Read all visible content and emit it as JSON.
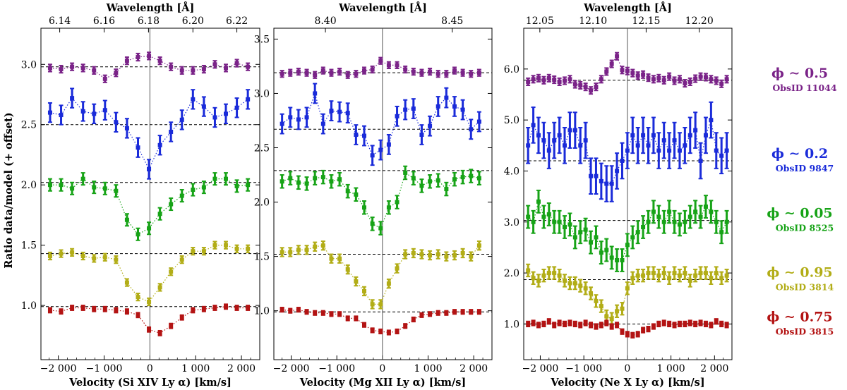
{
  "figure": {
    "ylabel": "Ratio data/model  (+ offset)",
    "top_axis_label": "Wavelength [Å]"
  },
  "colors": {
    "purple": "#7a2388",
    "blue": "#1a2bd9",
    "green": "#17a317",
    "olive": "#b2ad17",
    "red": "#b31313"
  },
  "legend": [
    {
      "phase": "ϕ ∼ 0.5",
      "obsid": "ObsID 11044",
      "color": "#7a2388"
    },
    {
      "phase": "ϕ ∼ 0.2",
      "obsid": "ObsID 9847",
      "color": "#1a2bd9"
    },
    {
      "phase": "ϕ ∼ 0.05",
      "obsid": "ObsID 8525",
      "color": "#17a317"
    },
    {
      "phase": "ϕ ∼ 0.95",
      "obsid": "ObsID 3814",
      "color": "#b2ad17"
    },
    {
      "phase": "ϕ ∼ 0.75",
      "obsid": "ObsID 3815",
      "color": "#b31313"
    }
  ],
  "chart_data": [
    {
      "type": "scatter",
      "xlabel": "Velocity (Si XIV Ly α) [km/s]",
      "xlim": [
        -2380,
        2400
      ],
      "ylim": [
        0.55,
        3.3
      ],
      "xticks": [
        -2000,
        -1000,
        0,
        1000,
        2000
      ],
      "xtick_labels": [
        "−2 000",
        "−1 000",
        "0",
        "1 000",
        "2 000"
      ],
      "yticks": [
        1.0,
        1.5,
        2.0,
        2.5,
        3.0
      ],
      "ytick_labels": [
        "1.0",
        "1.5",
        "2.0",
        "2.5",
        "3.0"
      ],
      "top_ticks": [
        -1970,
        -1000,
        -30,
        940,
        1900
      ],
      "top_tick_labels": [
        "6.14",
        "6.16",
        "6.18",
        "6.20",
        "6.22"
      ],
      "x": [
        -2180,
        -1940,
        -1700,
        -1460,
        -1220,
        -980,
        -740,
        -500,
        -260,
        -20,
        220,
        460,
        700,
        940,
        1180,
        1420,
        1660,
        1900,
        2140
      ],
      "series": [
        {
          "color": "purple",
          "baseline": 2.98,
          "errbar": 0.03,
          "values": [
            2.97,
            2.96,
            2.98,
            2.97,
            2.95,
            2.88,
            2.93,
            3.03,
            3.06,
            3.07,
            3.03,
            2.98,
            2.95,
            2.95,
            2.96,
            3.0,
            2.97,
            3.01,
            2.98
          ]
        },
        {
          "color": "blue",
          "baseline": 2.5,
          "errbar": 0.08,
          "values": [
            2.6,
            2.58,
            2.72,
            2.61,
            2.59,
            2.62,
            2.52,
            2.47,
            2.31,
            2.13,
            2.33,
            2.44,
            2.54,
            2.71,
            2.65,
            2.56,
            2.59,
            2.64,
            2.71
          ]
        },
        {
          "color": "green",
          "baseline": 2.02,
          "errbar": 0.05,
          "values": [
            2.0,
            2.0,
            1.97,
            2.05,
            1.98,
            1.97,
            1.95,
            1.71,
            1.59,
            1.64,
            1.76,
            1.84,
            1.91,
            1.96,
            1.98,
            2.05,
            2.05,
            1.99,
            2.0
          ]
        },
        {
          "color": "olive",
          "baseline": 1.43,
          "errbar": 0.03,
          "values": [
            1.41,
            1.43,
            1.44,
            1.41,
            1.39,
            1.4,
            1.38,
            1.19,
            1.07,
            1.03,
            1.15,
            1.28,
            1.38,
            1.45,
            1.45,
            1.5,
            1.5,
            1.47,
            1.47
          ]
        },
        {
          "color": "red",
          "baseline": 0.99,
          "errbar": 0.02,
          "values": [
            0.96,
            0.95,
            0.98,
            0.98,
            0.97,
            0.97,
            0.96,
            0.95,
            0.92,
            0.8,
            0.77,
            0.83,
            0.9,
            0.96,
            0.97,
            0.98,
            0.99,
            0.98,
            0.98
          ]
        }
      ]
    },
    {
      "type": "scatter",
      "xlabel": "Velocity (Mg XII Ly α) [km/s]",
      "xlim": [
        -2380,
        2400
      ],
      "ylim": [
        0.55,
        3.6
      ],
      "xticks": [
        -2000,
        -1000,
        0,
        1000,
        2000
      ],
      "xtick_labels": [
        "−2 000",
        "−1 000",
        "0",
        "1 000",
        "2 000"
      ],
      "yticks": [
        1.0,
        1.5,
        2.0,
        2.5,
        3.0,
        3.5
      ],
      "ytick_labels": [
        "1.0",
        "1.5",
        "2.0",
        "2.5",
        "3.0",
        "3.5"
      ],
      "top_ticks": [
        -1250,
        1530
      ],
      "top_tick_labels": [
        "8.40",
        "8.45"
      ],
      "x": [
        -2200,
        -2020,
        -1840,
        -1660,
        -1480,
        -1300,
        -1120,
        -940,
        -760,
        -580,
        -400,
        -220,
        -40,
        140,
        320,
        500,
        680,
        860,
        1040,
        1220,
        1400,
        1580,
        1760,
        1940,
        2120
      ],
      "series": [
        {
          "color": "purple",
          "baseline": 3.19,
          "errbar": 0.03,
          "values": [
            3.18,
            3.19,
            3.2,
            3.19,
            3.17,
            3.21,
            3.19,
            3.2,
            3.17,
            3.18,
            3.21,
            3.22,
            3.3,
            3.26,
            3.26,
            3.22,
            3.2,
            3.19,
            3.2,
            3.18,
            3.18,
            3.21,
            3.19,
            3.18,
            3.19
          ]
        },
        {
          "color": "blue",
          "baseline": 2.67,
          "errbar": 0.09,
          "values": [
            2.72,
            2.78,
            2.76,
            2.78,
            3.0,
            2.72,
            2.84,
            2.83,
            2.82,
            2.62,
            2.61,
            2.43,
            2.48,
            2.53,
            2.79,
            2.85,
            2.86,
            2.62,
            2.7,
            2.88,
            2.96,
            2.88,
            2.85,
            2.67,
            2.74
          ]
        },
        {
          "color": "green",
          "baseline": 2.29,
          "errbar": 0.06,
          "values": [
            2.19,
            2.22,
            2.18,
            2.17,
            2.22,
            2.23,
            2.19,
            2.21,
            2.1,
            2.07,
            1.95,
            1.8,
            1.76,
            1.95,
            2.0,
            2.27,
            2.22,
            2.15,
            2.19,
            2.2,
            2.12,
            2.21,
            2.23,
            2.24,
            2.22
          ]
        },
        {
          "color": "olive",
          "baseline": 1.52,
          "errbar": 0.04,
          "values": [
            1.54,
            1.54,
            1.56,
            1.56,
            1.59,
            1.6,
            1.48,
            1.48,
            1.38,
            1.27,
            1.18,
            1.06,
            1.06,
            1.25,
            1.39,
            1.52,
            1.53,
            1.52,
            1.51,
            1.52,
            1.5,
            1.51,
            1.53,
            1.5,
            1.6
          ]
        },
        {
          "color": "red",
          "baseline": 0.99,
          "errbar": 0.02,
          "values": [
            1.01,
            1.0,
            1.01,
            0.99,
            0.98,
            0.98,
            0.97,
            0.97,
            0.93,
            0.93,
            0.87,
            0.82,
            0.81,
            0.8,
            0.81,
            0.86,
            0.92,
            0.96,
            0.97,
            0.98,
            0.98,
            0.99,
            0.99,
            0.99,
            0.99
          ]
        }
      ]
    },
    {
      "type": "scatter",
      "xlabel": "Velocity (Ne X Ly α) [km/s]",
      "xlim": [
        -2380,
        2400
      ],
      "ylim": [
        0.3,
        6.8
      ],
      "xticks": [
        -2000,
        -1000,
        0,
        1000,
        2000
      ],
      "xtick_labels": [
        "−2 000",
        "−1 000",
        "0",
        "1 000",
        "2 000"
      ],
      "yticks": [
        1.0,
        2.0,
        3.0,
        4.0,
        5.0,
        6.0
      ],
      "ytick_labels": [
        "1.0",
        "2.0",
        "3.0",
        "4.0",
        "5.0",
        "6.0"
      ],
      "top_ticks": [
        -2010,
        -790,
        430,
        1650
      ],
      "top_tick_labels": [
        "12.05",
        "12.10",
        "12.15",
        "12.20"
      ],
      "x": [
        -2280,
        -2160,
        -2040,
        -1920,
        -1800,
        -1680,
        -1560,
        -1440,
        -1320,
        -1200,
        -1080,
        -960,
        -840,
        -720,
        -600,
        -480,
        -360,
        -240,
        -120,
        0,
        120,
        240,
        360,
        480,
        600,
        720,
        840,
        960,
        1080,
        1200,
        1320,
        1440,
        1560,
        1680,
        1800,
        1920,
        2040,
        2160,
        2280
      ],
      "series": [
        {
          "color": "purple",
          "baseline": 5.78,
          "errbar": 0.07,
          "values": [
            5.75,
            5.8,
            5.82,
            5.78,
            5.82,
            5.79,
            5.75,
            5.77,
            5.8,
            5.7,
            5.68,
            5.65,
            5.58,
            5.65,
            5.8,
            5.95,
            6.1,
            6.25,
            5.98,
            5.96,
            5.92,
            5.87,
            5.89,
            5.83,
            5.8,
            5.82,
            5.78,
            5.85,
            5.77,
            5.8,
            5.72,
            5.75,
            5.81,
            5.85,
            5.84,
            5.8,
            5.77,
            5.71,
            5.8
          ]
        },
        {
          "color": "blue",
          "baseline": 4.2,
          "errbar": 0.35,
          "values": [
            4.5,
            4.9,
            4.7,
            4.6,
            4.4,
            4.6,
            4.7,
            4.5,
            4.8,
            4.8,
            4.5,
            4.6,
            3.9,
            3.9,
            3.8,
            3.75,
            3.75,
            4.0,
            4.2,
            4.4,
            4.7,
            4.5,
            4.7,
            4.5,
            4.7,
            4.4,
            4.6,
            4.4,
            4.6,
            4.4,
            4.5,
            4.7,
            4.8,
            4.2,
            4.7,
            5.0,
            4.4,
            4.3,
            4.4
          ]
        },
        {
          "color": "green",
          "baseline": 3.03,
          "errbar": 0.22,
          "values": [
            3.1,
            3.0,
            3.4,
            3.1,
            3.15,
            3.0,
            3.0,
            2.9,
            2.95,
            2.7,
            2.8,
            2.85,
            2.6,
            2.7,
            2.4,
            2.45,
            2.3,
            2.25,
            2.25,
            2.55,
            2.7,
            2.8,
            2.9,
            3.0,
            3.2,
            3.1,
            3.0,
            3.2,
            3.0,
            2.95,
            3.0,
            3.1,
            3.2,
            3.1,
            3.3,
            3.2,
            3.0,
            2.8,
            3.0
          ]
        },
        {
          "color": "olive",
          "baseline": 1.87,
          "errbar": 0.12,
          "values": [
            2.05,
            1.9,
            1.85,
            1.95,
            2.0,
            2.0,
            1.95,
            1.85,
            1.8,
            1.8,
            1.75,
            1.7,
            1.6,
            1.45,
            1.35,
            1.15,
            1.1,
            1.25,
            1.3,
            1.7,
            1.9,
            1.95,
            1.95,
            2.0,
            2.0,
            1.95,
            2.0,
            1.9,
            2.0,
            1.95,
            2.0,
            1.85,
            1.95,
            2.0,
            2.0,
            1.9,
            2.0,
            1.9,
            1.95
          ]
        },
        {
          "color": "red",
          "baseline": 1.0,
          "errbar": 0.05,
          "values": [
            1.0,
            1.02,
            0.98,
            1.0,
            1.05,
            0.98,
            1.02,
            1.0,
            1.02,
            1.0,
            0.98,
            1.02,
            0.98,
            0.95,
            0.98,
            1.02,
            0.95,
            0.98,
            0.85,
            0.8,
            0.78,
            0.8,
            0.88,
            0.9,
            0.95,
            1.0,
            1.02,
            1.0,
            0.98,
            1.0,
            1.0,
            1.02,
            1.0,
            1.02,
            1.0,
            0.98,
            1.05,
            1.0,
            0.98
          ]
        }
      ]
    }
  ]
}
